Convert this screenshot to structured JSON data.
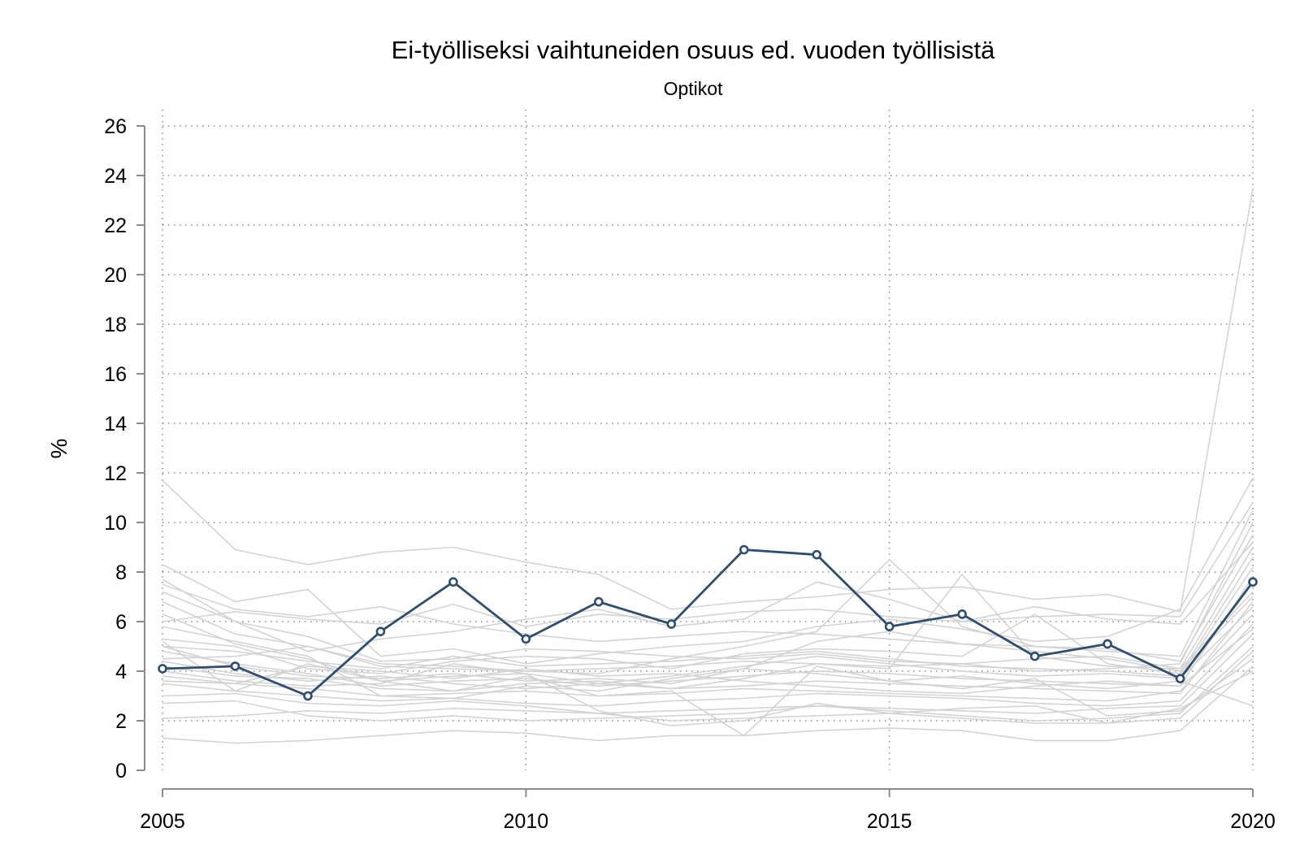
{
  "chart_data": {
    "type": "line",
    "title": "Ei-työlliseksi vaihtuneiden osuus ed. vuoden työllisistä",
    "subtitle": "Optikot",
    "ylabel": "%",
    "xlabel": "",
    "xlim": [
      2005,
      2020
    ],
    "ylim": [
      0,
      26
    ],
    "x_ticks": [
      2005,
      2010,
      2015,
      2020
    ],
    "y_ticks": [
      0,
      2,
      4,
      6,
      8,
      10,
      12,
      14,
      16,
      18,
      20,
      22,
      24,
      26
    ],
    "grid": true,
    "highlight_color": "#2e4e6e",
    "background_color": "#d3d3d3",
    "x": [
      2005,
      2006,
      2007,
      2008,
      2009,
      2010,
      2011,
      2012,
      2013,
      2014,
      2015,
      2016,
      2017,
      2018,
      2019,
      2020
    ],
    "series": [
      {
        "highlight": true,
        "values": [
          4.1,
          4.2,
          3.0,
          5.6,
          7.6,
          5.3,
          6.8,
          5.9,
          8.9,
          8.7,
          5.8,
          6.3,
          4.6,
          5.1,
          3.7,
          7.6
        ]
      },
      {
        "values": [
          11.7,
          8.9,
          8.3,
          8.8,
          9.0,
          8.4,
          7.9,
          6.5,
          6.8,
          7.0,
          7.3,
          7.4,
          6.9,
          7.1,
          6.4,
          23.5
        ]
      },
      {
        "values": [
          8.3,
          6.8,
          7.3,
          4.6,
          4.9,
          4.3,
          4.7,
          5.0,
          5.2,
          5.8,
          6.1,
          5.7,
          5.2,
          5.4,
          6.5,
          11.8
        ]
      },
      {
        "values": [
          7.7,
          6.0,
          4.8,
          5.3,
          5.6,
          6.1,
          6.5,
          5.8,
          6.1,
          7.6,
          6.9,
          6.0,
          6.2,
          6.3,
          6.2,
          10.8
        ]
      },
      {
        "values": [
          7.5,
          6.5,
          6.2,
          6.6,
          5.9,
          5.5,
          5.2,
          5.4,
          5.6,
          5.5,
          5.3,
          5.1,
          5.0,
          4.8,
          4.6,
          10.5
        ]
      },
      {
        "values": [
          7.2,
          6.0,
          5.4,
          4.4,
          4.5,
          4.9,
          4.8,
          4.6,
          4.5,
          4.7,
          4.4,
          4.3,
          4.0,
          4.1,
          4.3,
          10.0
        ]
      },
      {
        "values": [
          6.8,
          5.5,
          5.0,
          4.2,
          4.1,
          4.0,
          3.9,
          4.5,
          5.0,
          5.6,
          8.5,
          5.8,
          5.0,
          4.9,
          4.4,
          9.5
        ]
      },
      {
        "values": [
          6.3,
          5.1,
          4.5,
          3.6,
          3.8,
          3.9,
          3.5,
          3.3,
          3.7,
          4.3,
          4.1,
          7.9,
          4.6,
          4.2,
          4.1,
          9.0
        ]
      },
      {
        "values": [
          5.3,
          5.0,
          4.1,
          3.9,
          4.4,
          4.6,
          4.5,
          4.1,
          4.7,
          4.9,
          4.8,
          4.6,
          6.3,
          4.3,
          3.9,
          8.6
        ]
      },
      {
        "values": [
          5.0,
          4.8,
          4.4,
          4.1,
          4.6,
          4.2,
          4.3,
          4.4,
          4.6,
          4.8,
          4.5,
          4.2,
          4.1,
          4.0,
          3.8,
          8.2
        ]
      },
      {
        "values": [
          4.8,
          4.3,
          3.9,
          3.4,
          3.6,
          3.7,
          3.4,
          3.6,
          3.8,
          4.0,
          3.9,
          3.7,
          3.6,
          3.5,
          3.4,
          7.8
        ]
      },
      {
        "values": [
          4.5,
          4.6,
          5.0,
          4.3,
          4.2,
          4.0,
          4.1,
          4.2,
          4.4,
          4.3,
          4.2,
          4.3,
          4.5,
          4.6,
          4.1,
          7.2
        ]
      },
      {
        "values": [
          4.2,
          3.8,
          3.7,
          3.3,
          3.2,
          3.5,
          3.6,
          3.3,
          3.4,
          3.6,
          3.5,
          3.4,
          3.3,
          3.2,
          3.1,
          6.8
        ]
      },
      {
        "values": [
          3.8,
          3.5,
          3.3,
          3.0,
          3.1,
          3.2,
          3.0,
          3.1,
          3.3,
          3.2,
          3.1,
          3.0,
          2.9,
          2.8,
          3.2,
          6.3
        ]
      },
      {
        "values": [
          3.5,
          3.2,
          3.0,
          2.8,
          2.9,
          2.7,
          2.6,
          2.8,
          2.9,
          3.1,
          3.0,
          2.9,
          2.7,
          2.6,
          2.8,
          5.9
        ]
      },
      {
        "values": [
          3.0,
          3.1,
          2.7,
          2.6,
          2.8,
          2.6,
          2.3,
          2.4,
          2.5,
          2.6,
          2.5,
          2.4,
          2.3,
          2.5,
          2.6,
          5.5
        ]
      },
      {
        "values": [
          2.7,
          2.8,
          2.2,
          2.0,
          2.2,
          2.0,
          2.1,
          2.2,
          2.3,
          2.6,
          2.4,
          2.2,
          2.0,
          2.1,
          2.3,
          5.0
        ]
      },
      {
        "values": [
          2.1,
          2.2,
          2.4,
          2.3,
          2.5,
          2.4,
          2.3,
          2.0,
          2.1,
          2.2,
          2.3,
          2.1,
          1.9,
          1.9,
          2.1,
          4.8
        ]
      },
      {
        "values": [
          5.2,
          3.2,
          4.3,
          3.6,
          3.2,
          3.8,
          3.0,
          3.2,
          1.4,
          4.2,
          3.6,
          3.3,
          3.7,
          2.2,
          2.4,
          4.5
        ]
      },
      {
        "values": [
          1.3,
          1.1,
          1.2,
          1.4,
          1.6,
          1.5,
          1.2,
          1.4,
          1.4,
          1.6,
          1.7,
          1.6,
          1.2,
          1.2,
          1.6,
          4.2
        ]
      },
      {
        "values": [
          4.0,
          3.6,
          3.4,
          3.5,
          4.3,
          3.9,
          2.4,
          1.8,
          2.0,
          2.7,
          2.3,
          2.5,
          2.6,
          1.9,
          2.5,
          4.0
        ]
      },
      {
        "values": [
          5.8,
          5.2,
          4.6,
          3.0,
          2.9,
          3.4,
          3.2,
          3.7,
          4.1,
          3.9,
          3.6,
          3.8,
          3.5,
          3.3,
          3.6,
          2.6
        ]
      },
      {
        "values": [
          3.6,
          3.5,
          4.2,
          4.0,
          3.7,
          4.1,
          3.8,
          3.9,
          3.6,
          3.4,
          3.2,
          3.1,
          3.4,
          3.6,
          3.4,
          5.7
        ]
      },
      {
        "values": [
          5.0,
          4.2,
          3.8,
          3.7,
          3.9,
          3.6,
          3.7,
          3.5,
          4.1,
          5.2,
          5.6,
          5.1,
          4.8,
          4.5,
          4.0,
          7.0
        ]
      },
      {
        "values": [
          6.0,
          6.4,
          6.1,
          5.9,
          6.7,
          5.8,
          6.3,
          6.1,
          6.4,
          6.5,
          6.2,
          6.0,
          6.6,
          6.1,
          5.9,
          9.2
        ]
      },
      {
        "values": [
          4.4,
          3.9,
          3.6,
          3.8,
          3.5,
          3.3,
          3.5,
          3.8,
          4.2,
          4.6,
          4.3,
          4.0,
          3.8,
          3.9,
          3.7,
          6.6
        ]
      }
    ]
  }
}
